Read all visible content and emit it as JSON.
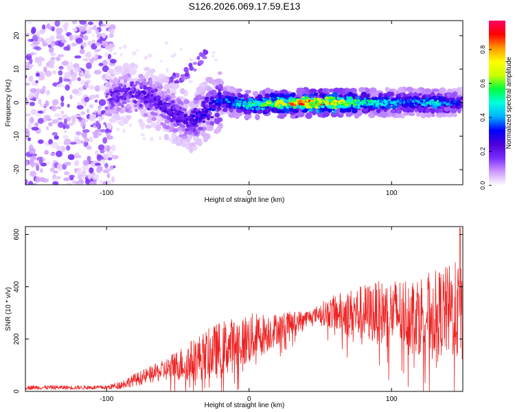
{
  "title": "S126.2026.069.17.59.E13",
  "chart_data": [
    {
      "type": "heatmap",
      "xlabel": "Height of straight line (km)",
      "ylabel": "Frequency (Hz)",
      "xlim": [
        -157,
        150
      ],
      "ylim": [
        -24.5,
        24.5
      ],
      "x_ticks": [
        -100,
        0,
        100
      ],
      "y_ticks": [
        -20,
        -10,
        0,
        10,
        20
      ],
      "grid": false,
      "colorbar": {
        "label": "Normalized spectral amplitude",
        "range": [
          0,
          0.97
        ],
        "ticks": [
          0.0,
          0.2,
          0.4,
          0.6,
          0.8
        ],
        "colormap": [
          "#ffffff",
          "#cc99ff",
          "#7a2cff",
          "#4a00d8",
          "#0000ff",
          "#00b0ff",
          "#00ffe0",
          "#00ff40",
          "#c8ff00",
          "#ffff00",
          "#ff9900",
          "#ff0000",
          "#ff0066"
        ]
      },
      "ridge": {
        "description_free": true,
        "points": [
          {
            "x": -100,
            "y": 1.5
          },
          {
            "x": -80,
            "y": 3.0
          },
          {
            "x": -65,
            "y": 0.5
          },
          {
            "x": -50,
            "y": -4.0
          },
          {
            "x": -40,
            "y": -5.5
          },
          {
            "x": -30,
            "y": -2.0
          },
          {
            "x": -20,
            "y": 0.5
          },
          {
            "x": 0,
            "y": -0.5
          },
          {
            "x": 40,
            "y": 0.0
          },
          {
            "x": 80,
            "y": 0.0
          },
          {
            "x": 120,
            "y": 0.0
          },
          {
            "x": 150,
            "y": 0.0
          }
        ],
        "amplitude": [
          {
            "x": -100,
            "a": 0.2
          },
          {
            "x": -75,
            "a": 0.25
          },
          {
            "x": -50,
            "a": 0.25
          },
          {
            "x": -25,
            "a": 0.35
          },
          {
            "x": 0,
            "a": 0.6
          },
          {
            "x": 40,
            "a": 0.95
          },
          {
            "x": 60,
            "a": 0.9
          },
          {
            "x": 80,
            "a": 0.6
          },
          {
            "x": 110,
            "a": 0.45
          },
          {
            "x": 130,
            "a": 0.55
          },
          {
            "x": 150,
            "a": 0.3
          }
        ]
      },
      "secondary_band": [
        {
          "x": -60,
          "y": 6.0
        },
        {
          "x": -45,
          "y": 8.0
        },
        {
          "x": -30,
          "y": 15.0
        }
      ],
      "noise_region": {
        "x_range": [
          -157,
          -100
        ],
        "y_range": [
          -24.5,
          24.5
        ],
        "amplitude": 0.15
      }
    },
    {
      "type": "line",
      "xlabel": "Height of straight line (km)",
      "ylabel": "SNR (10 * v/v)",
      "xlim": [
        -157,
        150
      ],
      "ylim": [
        0,
        630
      ],
      "x_ticks": [
        -100,
        0,
        100
      ],
      "y_ticks": [
        0,
        200,
        400,
        600
      ],
      "grid": false,
      "series": [
        {
          "color": "#ee2222",
          "trend": [
            {
              "x": -157,
              "y": 15
            },
            {
              "x": -100,
              "y": 15
            },
            {
              "x": -90,
              "y": 25
            },
            {
              "x": -80,
              "y": 45
            },
            {
              "x": -60,
              "y": 80
            },
            {
              "x": -40,
              "y": 120
            },
            {
              "x": -20,
              "y": 160
            },
            {
              "x": 0,
              "y": 200
            },
            {
              "x": 20,
              "y": 240
            },
            {
              "x": 40,
              "y": 280
            },
            {
              "x": 50,
              "y": 300
            },
            {
              "x": 70,
              "y": 300
            },
            {
              "x": 90,
              "y": 300
            },
            {
              "x": 110,
              "y": 300
            },
            {
              "x": 130,
              "y": 300
            },
            {
              "x": 150,
              "y": 310
            }
          ],
          "spread": [
            {
              "x": -157,
              "y": 8
            },
            {
              "x": -100,
              "y": 8
            },
            {
              "x": -60,
              "y": 40
            },
            {
              "x": -40,
              "y": 80
            },
            {
              "x": -20,
              "y": 110
            },
            {
              "x": 0,
              "y": 100
            },
            {
              "x": 20,
              "y": 60
            },
            {
              "x": 45,
              "y": 25
            },
            {
              "x": 60,
              "y": 70
            },
            {
              "x": 80,
              "y": 110
            },
            {
              "x": 100,
              "y": 130
            },
            {
              "x": 130,
              "y": 160
            },
            {
              "x": 150,
              "y": 200
            }
          ],
          "peak": {
            "x": 148,
            "y": 625
          }
        }
      ]
    }
  ]
}
